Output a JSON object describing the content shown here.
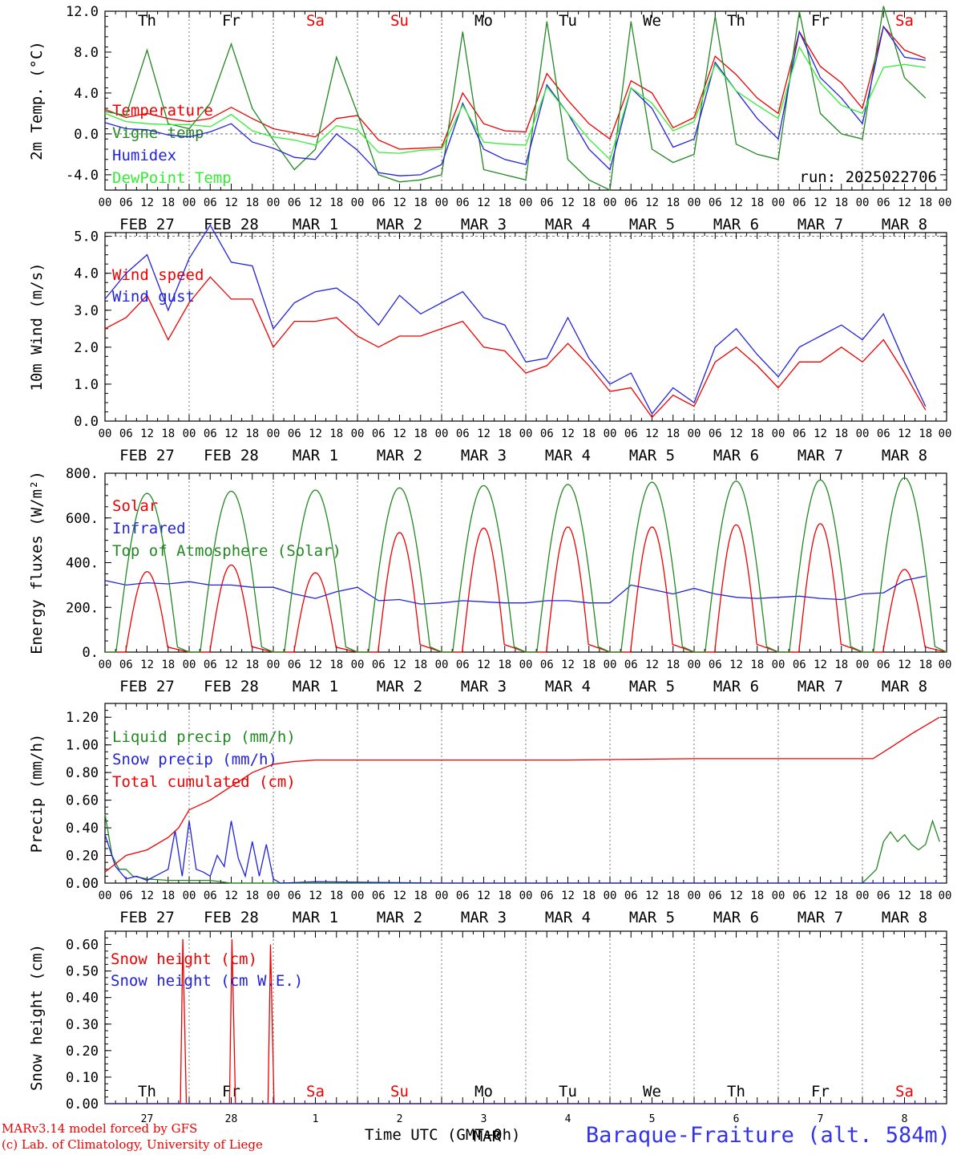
{
  "run_label": "run: 2025022706",
  "days_top": [
    "Th",
    "Fr",
    "Sa",
    "Su",
    "Mo",
    "Tu",
    "We",
    "Th",
    "Fr",
    "Sa"
  ],
  "weekend_color": "#ee0000",
  "date_labels": [
    "FEB 27",
    "FEB 28",
    "MAR  1",
    "MAR  2",
    "MAR  3",
    "MAR  4",
    "MAR  5",
    "MAR  6",
    "MAR  7",
    "MAR  8"
  ],
  "hour_ticks": [
    "00",
    "06",
    "12",
    "18"
  ],
  "bottom_day_numbers": [
    "27",
    "28",
    "1",
    "2",
    "3",
    "4",
    "5",
    "6",
    "7",
    "8"
  ],
  "bottom_month": "MAR",
  "time_axis_label": "Time UTC (GMT+0h)",
  "station": "Baraque-Fraiture (alt. 584m)",
  "credits": [
    "MARv3.14 model forced by GFS",
    "(c) Lab. of Climatology, University of Liege"
  ],
  "chart_data": [
    {
      "id": "temp",
      "type": "line",
      "ylabel": "2m Temp. (°C)",
      "ylim": [
        -5.5,
        12
      ],
      "yticks": [
        "12.0",
        "8.0",
        "4.0",
        "0.0",
        "-4.0"
      ],
      "ytick_values": [
        12,
        8,
        4,
        0,
        -4
      ],
      "reference_line": 0,
      "series": [
        {
          "name": "Temperature",
          "color": "#ee0000",
          "x_hours": [
            0,
            6,
            12,
            18,
            24,
            30,
            36,
            42,
            48,
            54,
            60,
            66,
            72,
            78,
            84,
            90,
            96,
            102,
            108,
            114,
            120,
            126,
            132,
            138,
            144,
            150,
            156,
            162,
            168,
            174,
            180,
            186,
            192,
            198,
            204,
            210,
            216,
            222,
            228,
            234
          ],
          "values": [
            2.4,
            1.6,
            2.0,
            1.5,
            1.2,
            1.5,
            2.6,
            1.5,
            0.5,
            0.1,
            -0.3,
            1.5,
            1.8,
            -0.6,
            -1.5,
            -1.4,
            -1.3,
            4.0,
            1.0,
            0.3,
            0.2,
            5.9,
            3.3,
            1.0,
            -0.5,
            5.2,
            4.0,
            0.6,
            1.6,
            7.6,
            5.8,
            3.5,
            2.0,
            10.0,
            6.6,
            5.0,
            2.5,
            10.5,
            8.2,
            7.4
          ]
        },
        {
          "name": "Vigne temp",
          "color": "#228822",
          "x_hours": [
            0,
            6,
            12,
            18,
            24,
            30,
            36,
            42,
            48,
            54,
            60,
            66,
            72,
            78,
            84,
            90,
            96,
            102,
            108,
            114,
            120,
            126,
            132,
            138,
            144,
            150,
            156,
            162,
            168,
            174,
            180,
            186,
            192,
            198,
            204,
            210,
            216,
            222,
            228,
            234
          ],
          "values": [
            2.2,
            1.8,
            8.2,
            1.0,
            0.5,
            3.0,
            8.8,
            2.5,
            -0.6,
            -3.5,
            -1.5,
            7.5,
            2.0,
            -4.0,
            -4.7,
            -4.5,
            -4.0,
            10.0,
            -3.5,
            -4.0,
            -4.5,
            11.0,
            -2.5,
            -4.5,
            -5.5,
            11.0,
            -1.5,
            -2.8,
            -2.0,
            11.5,
            -1.0,
            -2.0,
            -2.5,
            12.0,
            2.0,
            0.0,
            -0.5,
            12.5,
            5.5,
            3.5
          ]
        },
        {
          "name": "Humidex",
          "color": "#2222dd",
          "x_hours": [
            0,
            6,
            12,
            18,
            24,
            30,
            36,
            42,
            48,
            54,
            60,
            66,
            72,
            78,
            84,
            90,
            96,
            102,
            108,
            114,
            120,
            126,
            132,
            138,
            144,
            150,
            156,
            162,
            168,
            174,
            180,
            186,
            192,
            198,
            204,
            210,
            216,
            222,
            228,
            234
          ],
          "values": [
            1.1,
            0.5,
            0.4,
            -0.1,
            -0.3,
            0.2,
            1.0,
            -0.8,
            -1.4,
            -2.3,
            -2.5,
            0.0,
            -1.6,
            -3.8,
            -4.1,
            -4.0,
            -3.0,
            3.0,
            -1.5,
            -2.5,
            -3.0,
            4.8,
            2.0,
            -1.5,
            -3.5,
            4.5,
            2.5,
            -1.3,
            -0.5,
            7.0,
            4.2,
            1.5,
            -0.5,
            10.0,
            5.5,
            3.5,
            1.0,
            10.5,
            7.5,
            7.2
          ]
        },
        {
          "name": "DewPoint Temp",
          "color": "#33ee33",
          "x_hours": [
            0,
            6,
            12,
            18,
            24,
            30,
            36,
            42,
            48,
            54,
            60,
            66,
            72,
            78,
            84,
            90,
            96,
            102,
            108,
            114,
            120,
            126,
            132,
            138,
            144,
            150,
            156,
            162,
            168,
            174,
            180,
            186,
            192,
            198,
            204,
            210,
            216,
            222,
            228,
            234
          ],
          "values": [
            2.0,
            1.2,
            1.0,
            0.9,
            0.9,
            0.7,
            1.9,
            0.3,
            -0.3,
            -0.6,
            -1.1,
            0.8,
            0.4,
            -1.8,
            -1.9,
            -1.6,
            -1.5,
            2.8,
            -0.8,
            -1.0,
            -1.1,
            4.6,
            2.0,
            -0.5,
            -2.5,
            4.5,
            3.0,
            0.3,
            1.2,
            6.8,
            4.2,
            2.8,
            1.5,
            8.5,
            5.0,
            2.8,
            2.0,
            6.5,
            6.8,
            6.5
          ]
        }
      ]
    },
    {
      "id": "wind",
      "type": "line",
      "ylabel": "10m Wind (m/s)",
      "ylim": [
        0,
        5.1
      ],
      "yticks": [
        "5.0",
        "4.0",
        "3.0",
        "2.0",
        "1.0",
        "0.0"
      ],
      "ytick_values": [
        5,
        4,
        3,
        2,
        1,
        0
      ],
      "reference_line": 5,
      "series": [
        {
          "name": "Wind speed",
          "color": "#ee0000",
          "x_hours": [
            0,
            6,
            12,
            18,
            24,
            30,
            36,
            42,
            48,
            54,
            60,
            66,
            72,
            78,
            84,
            90,
            96,
            102,
            108,
            114,
            120,
            126,
            132,
            138,
            144,
            150,
            156,
            162,
            168,
            174,
            180,
            186,
            192,
            198,
            204,
            210,
            216,
            222,
            228,
            234
          ],
          "values": [
            2.5,
            2.8,
            3.4,
            2.2,
            3.2,
            3.9,
            3.3,
            3.3,
            2.0,
            2.7,
            2.7,
            2.8,
            2.3,
            2.0,
            2.3,
            2.3,
            2.5,
            2.7,
            2.0,
            1.9,
            1.3,
            1.5,
            2.1,
            1.5,
            0.8,
            0.9,
            0.1,
            0.7,
            0.4,
            1.6,
            2.0,
            1.5,
            0.9,
            1.6,
            1.6,
            2.0,
            1.6,
            2.2,
            1.3,
            0.3
          ]
        },
        {
          "name": "Wind gust",
          "color": "#2222dd",
          "x_hours": [
            0,
            6,
            12,
            18,
            24,
            30,
            36,
            42,
            48,
            54,
            60,
            66,
            72,
            78,
            84,
            90,
            96,
            102,
            108,
            114,
            120,
            126,
            132,
            138,
            144,
            150,
            156,
            162,
            168,
            174,
            180,
            186,
            192,
            198,
            204,
            210,
            216,
            222,
            228,
            234
          ],
          "values": [
            3.3,
            4.0,
            4.5,
            3.0,
            4.4,
            5.3,
            4.3,
            4.2,
            2.5,
            3.2,
            3.5,
            3.6,
            3.2,
            2.6,
            3.4,
            2.9,
            3.2,
            3.5,
            2.8,
            2.6,
            1.6,
            1.7,
            2.8,
            1.7,
            1.0,
            1.3,
            0.2,
            0.9,
            0.5,
            2.0,
            2.5,
            1.8,
            1.2,
            2.0,
            2.3,
            2.6,
            2.2,
            2.9,
            1.6,
            0.4
          ]
        }
      ]
    },
    {
      "id": "flux",
      "type": "line",
      "ylabel": "Energy fluxes (W/m²)",
      "ylim": [
        0,
        800
      ],
      "yticks": [
        "800.",
        "600.",
        "400.",
        "200.",
        "0."
      ],
      "ytick_values": [
        800,
        600,
        400,
        200,
        0
      ],
      "series": [
        {
          "name": "Solar",
          "color": "#ee0000",
          "peaks": [
            360,
            390,
            355,
            535,
            555,
            560,
            560,
            570,
            575,
            370
          ]
        },
        {
          "name": "Infrared",
          "color": "#2222dd",
          "x_hours": [
            0,
            6,
            12,
            18,
            24,
            30,
            36,
            42,
            48,
            54,
            60,
            66,
            72,
            78,
            84,
            90,
            96,
            102,
            108,
            114,
            120,
            126,
            132,
            138,
            144,
            150,
            156,
            162,
            168,
            174,
            180,
            186,
            192,
            198,
            204,
            210,
            216,
            222,
            228,
            234
          ],
          "values": [
            320,
            300,
            310,
            305,
            315,
            300,
            300,
            290,
            290,
            260,
            240,
            270,
            290,
            230,
            235,
            215,
            220,
            230,
            225,
            220,
            220,
            230,
            230,
            220,
            220,
            300,
            280,
            260,
            285,
            260,
            245,
            240,
            245,
            250,
            240,
            235,
            260,
            265,
            320,
            340
          ]
        },
        {
          "name": "Top of Atmosphere (Solar)",
          "color": "#228822",
          "peaks": [
            710,
            720,
            725,
            735,
            745,
            750,
            760,
            765,
            770,
            780
          ]
        }
      ]
    },
    {
      "id": "precip",
      "type": "line",
      "ylabel": "Precip (mm/h)",
      "ylim": [
        0,
        1.3
      ],
      "yticks": [
        "1.20",
        "1.00",
        "0.80",
        "0.60",
        "0.40",
        "0.20",
        "0.00"
      ],
      "ytick_values": [
        1.2,
        1.0,
        0.8,
        0.6,
        0.4,
        0.2,
        0.0
      ],
      "series": [
        {
          "name": "Liquid precip (mm/h)",
          "color": "#228822",
          "x_hours": [
            0,
            2,
            4,
            6,
            8,
            12,
            18,
            24,
            30,
            36,
            42,
            48,
            54,
            216,
            220,
            222,
            224,
            226,
            228,
            230,
            232,
            234,
            236,
            238
          ],
          "values": [
            0.5,
            0.2,
            0.1,
            0.1,
            0.05,
            0.03,
            0.02,
            0.02,
            0.02,
            0.0,
            0.0,
            0.0,
            0.0,
            0.0,
            0.1,
            0.3,
            0.37,
            0.3,
            0.35,
            0.28,
            0.24,
            0.28,
            0.45,
            0.3
          ]
        },
        {
          "name": "Snow precip (mm/h)",
          "color": "#2222dd",
          "x_hours": [
            0,
            3,
            6,
            9,
            12,
            15,
            18,
            20,
            22,
            24,
            26,
            28,
            30,
            32,
            34,
            36,
            38,
            40,
            42,
            44,
            46,
            48,
            50,
            60,
            96,
            132,
            168,
            200,
            238
          ],
          "values": [
            0.35,
            0.12,
            0.03,
            0.05,
            0.02,
            0.06,
            0.1,
            0.38,
            0.05,
            0.45,
            0.1,
            0.08,
            0.05,
            0.2,
            0.12,
            0.45,
            0.18,
            0.05,
            0.3,
            0.05,
            0.28,
            0.03,
            0.0,
            0.01,
            0.0,
            0.0,
            0.0,
            0.0,
            0.0
          ]
        },
        {
          "name": "Total cumulated (cm)",
          "color": "#ee0000",
          "x_hours": [
            0,
            6,
            12,
            18,
            21,
            24,
            30,
            36,
            42,
            48,
            54,
            60,
            96,
            132,
            168,
            200,
            216,
            219,
            224,
            230,
            238
          ],
          "values": [
            0.08,
            0.2,
            0.24,
            0.33,
            0.4,
            0.53,
            0.6,
            0.7,
            0.8,
            0.86,
            0.88,
            0.89,
            0.89,
            0.89,
            0.9,
            0.9,
            0.9,
            0.9,
            0.98,
            1.08,
            1.2
          ]
        }
      ]
    },
    {
      "id": "snow",
      "type": "line",
      "ylabel": "Snow height (cm)",
      "ylim": [
        0,
        0.65
      ],
      "yticks": [
        "0.60",
        "0.50",
        "0.40",
        "0.30",
        "0.20",
        "0.10",
        "0.00"
      ],
      "ytick_values": [
        0.6,
        0.5,
        0.4,
        0.3,
        0.2,
        0.1,
        0.0
      ],
      "series": [
        {
          "name": "Snow height (cm)",
          "color": "#ee0000",
          "x_hours": [
            0,
            21.5,
            22.2,
            23.2,
            35.5,
            36.2,
            37.2,
            46.5,
            47.2,
            48.2,
            238
          ],
          "values": [
            0,
            0,
            0.62,
            0,
            0,
            0.62,
            0,
            0,
            0.6,
            0,
            0
          ]
        },
        {
          "name": "Snow height (cm W.E.)",
          "color": "#2222dd",
          "x_hours": [
            0,
            238
          ],
          "values": [
            0,
            0
          ]
        }
      ]
    }
  ]
}
